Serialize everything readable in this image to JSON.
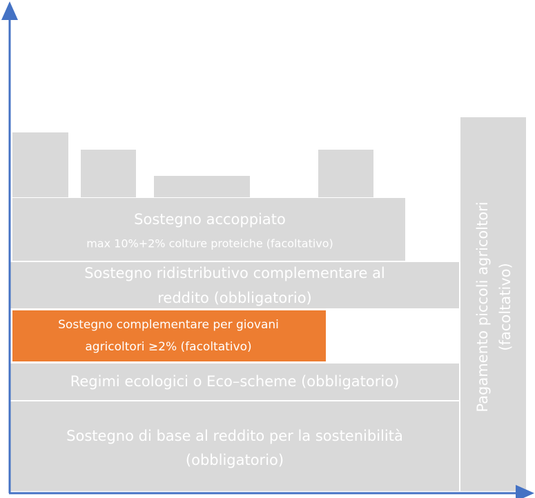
{
  "blocks": {
    "base": {
      "lines": [
        "Sostegno di base al reddito per la sostenibilità",
        "(obbligatorio)"
      ]
    },
    "eco": {
      "lines": [
        "Regimi ecologici o Eco–scheme (obbligatorio)"
      ]
    },
    "young": {
      "lines": [
        "Sostegno complementare per giovani",
        "agricoltori ≥2% (facoltativo)"
      ]
    },
    "redistributive": {
      "lines": [
        "Sostegno ridistributivo complementare al",
        "reddito (obbligatorio)"
      ]
    },
    "coupled": {
      "title": "Sostegno accoppiato",
      "subtitle": "max 10%+2% colture proteiche (facoltativo)"
    },
    "small_farmers": {
      "lines": [
        "Pagamento piccoli agricoltori",
        "(facoltativo)"
      ]
    }
  }
}
